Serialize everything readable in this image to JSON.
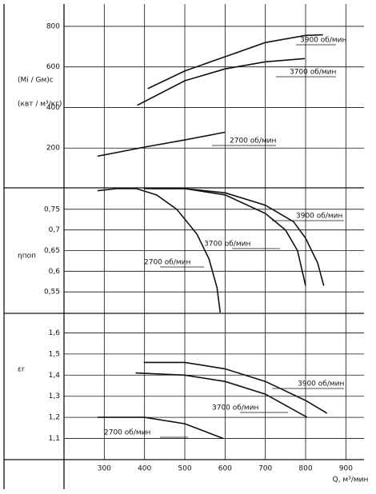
{
  "chart_data": [
    {
      "type": "line",
      "y_label": [
        "(Mi / Gм)с",
        "(квт / м³/кг)"
      ],
      "ylim": [
        0,
        910
      ],
      "yticks": [
        200,
        400,
        600,
        800
      ],
      "series": [
        {
          "name": "3900 об/мин",
          "color": "#111111",
          "x": [
            408,
            500,
            600,
            700,
            800,
            843
          ],
          "values": [
            493,
            580,
            650,
            720,
            755,
            758
          ]
        },
        {
          "name": "3700 об/мин",
          "color": "#111111",
          "x": [
            382,
            500,
            600,
            700,
            798
          ],
          "values": [
            411,
            532,
            590,
            625,
            641
          ]
        },
        {
          "name": "2700 об/мин",
          "color": "#111111",
          "x": [
            283,
            400,
            500,
            600
          ],
          "values": [
            160,
            205,
            240,
            278
          ]
        }
      ]
    },
    {
      "type": "line",
      "y_label": [
        "ηпоп"
      ],
      "ylim": [
        0.5,
        0.8
      ],
      "yticks": [
        {
          "value": 0.55,
          "label": "0,55"
        },
        {
          "value": 0.6,
          "label": "0,6"
        },
        {
          "value": 0.65,
          "label": "0,65"
        },
        {
          "value": 0.7,
          "label": "0,7"
        },
        {
          "value": 0.75,
          "label": "0,75"
        }
      ],
      "series": [
        {
          "name": "3900 об/мин",
          "color": "#111111",
          "x": [
            418,
            500,
            600,
            700,
            770,
            800,
            830,
            845
          ],
          "values": [
            0.8,
            0.8,
            0.79,
            0.76,
            0.72,
            0.68,
            0.62,
            0.565
          ]
        },
        {
          "name": "3700 об/мин",
          "color": "#111111",
          "x": [
            398,
            450,
            500,
            600,
            700,
            750,
            780,
            800
          ],
          "values": [
            0.8,
            0.8,
            0.8,
            0.785,
            0.74,
            0.7,
            0.65,
            0.565
          ]
        },
        {
          "name": "2700 об/мин",
          "color": "#111111",
          "x": [
            283,
            330,
            380,
            430,
            480,
            530,
            560,
            580,
            588
          ],
          "values": [
            0.795,
            0.8,
            0.8,
            0.785,
            0.75,
            0.69,
            0.63,
            0.56,
            0.5
          ]
        }
      ]
    },
    {
      "type": "line",
      "y_label": [
        "εr"
      ],
      "ylim": [
        1.0,
        1.7
      ],
      "yticks": [
        {
          "value": 1.1,
          "label": "1,1"
        },
        {
          "value": 1.2,
          "label": "1,2"
        },
        {
          "value": 1.3,
          "label": "1,3"
        },
        {
          "value": 1.4,
          "label": "1,4"
        },
        {
          "value": 1.5,
          "label": "1,5"
        },
        {
          "value": 1.6,
          "label": "1,6"
        }
      ],
      "xlim": [
        200,
        945
      ],
      "xticks": [
        300,
        400,
        500,
        600,
        700,
        800,
        900
      ],
      "x_label": "Q, м³/мин",
      "series": [
        {
          "name": "3900 об/мин",
          "color": "#111111",
          "x": [
            398,
            500,
            600,
            700,
            800,
            853
          ],
          "values": [
            1.46,
            1.46,
            1.43,
            1.37,
            1.28,
            1.22
          ]
        },
        {
          "name": "3700 об/мин",
          "color": "#111111",
          "x": [
            378,
            500,
            600,
            700,
            804
          ],
          "values": [
            1.41,
            1.4,
            1.37,
            1.31,
            1.2
          ]
        },
        {
          "name": "2700 об/мин",
          "color": "#111111",
          "x": [
            283,
            400,
            500,
            596
          ],
          "values": [
            1.2,
            1.2,
            1.17,
            1.1
          ]
        }
      ]
    }
  ]
}
